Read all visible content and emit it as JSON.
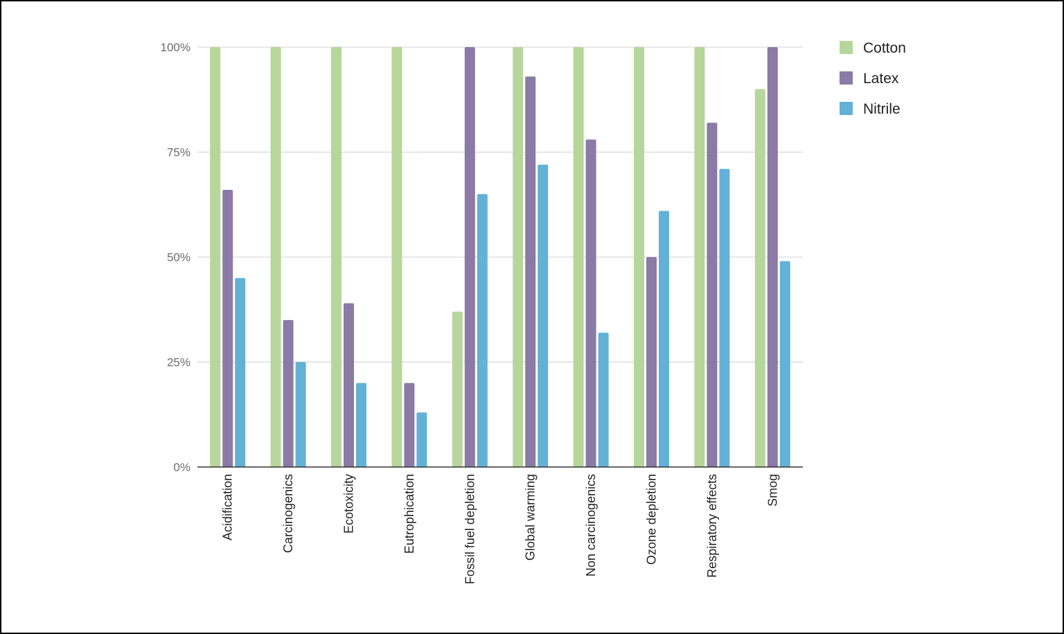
{
  "chart_data": {
    "type": "bar",
    "title": "",
    "xlabel": "",
    "ylabel": "",
    "categories": [
      "Acidification",
      "Carcinogenics",
      "Ecotoxicity",
      "Eutrophication",
      "Fossil fuel depletion",
      "Global warming",
      "Non carcinogenics",
      "Ozone depletion",
      "Respiratory effects",
      "Smog"
    ],
    "series": [
      {
        "name": "Cotton",
        "color": "#b6d69b",
        "values": [
          100,
          100,
          100,
          100,
          37,
          100,
          100,
          100,
          100,
          90
        ]
      },
      {
        "name": "Latex",
        "color": "#8b7aa6",
        "values": [
          66,
          35,
          39,
          20,
          100,
          93,
          78,
          50,
          82,
          100
        ]
      },
      {
        "name": "Nitrile",
        "color": "#63b1d6",
        "values": [
          45,
          25,
          20,
          13,
          65,
          72,
          32,
          61,
          71,
          49
        ]
      }
    ],
    "ylim": [
      0,
      100
    ],
    "yticks": [
      {
        "value": 0,
        "label": "0%"
      },
      {
        "value": 25,
        "label": "25%"
      },
      {
        "value": 50,
        "label": "50%"
      },
      {
        "value": 75,
        "label": "75%"
      },
      {
        "value": 100,
        "label": "100%"
      }
    ],
    "grid": true,
    "legend_position": "top-right"
  }
}
